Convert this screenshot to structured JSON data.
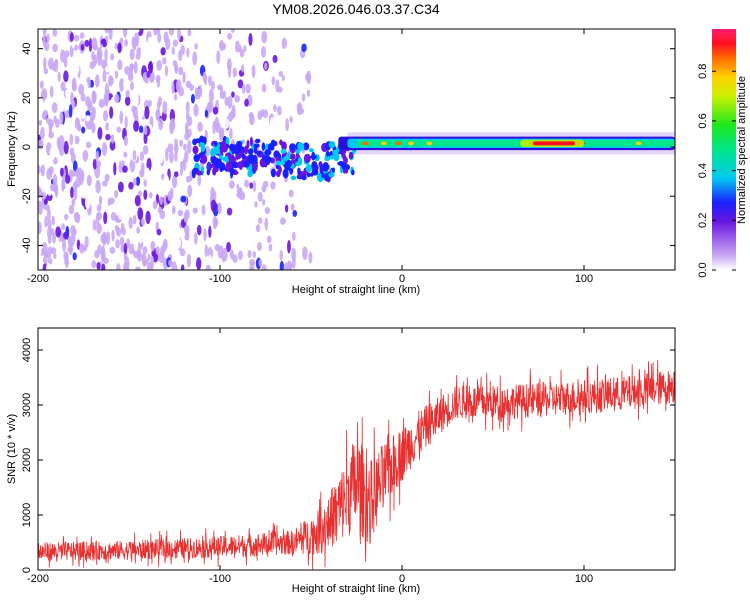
{
  "title": "YM08.2026.046.03.37.C34",
  "chart_data": [
    {
      "type": "heatmap",
      "xlabel": "Height of straight line (km)",
      "ylabel": "Frequency (Hz)",
      "xlim": [
        -200,
        150
      ],
      "ylim": [
        -50,
        48
      ],
      "xticks": [
        -200,
        -100,
        0,
        100
      ],
      "yticks": [
        -40,
        -20,
        0,
        20,
        40
      ],
      "xtick_labels": [
        "-200",
        "-100",
        "0",
        "100"
      ],
      "ytick_labels": [
        "-40",
        "-20",
        "0",
        "20",
        "40"
      ],
      "colorbar": {
        "label": "Normalized spectral amplitude",
        "range": [
          0,
          0.97
        ],
        "ticks": [
          0.0,
          0.2,
          0.4,
          0.6,
          0.8
        ],
        "tick_labels": [
          "0.0",
          "0.2",
          "0.4",
          "0.6",
          "0.8"
        ]
      },
      "description_regions": [
        {
          "name": "broadband noise",
          "x_range": [
            -200,
            -55
          ],
          "f_range": [
            -50,
            48
          ],
          "amplitude": 0.2
        },
        {
          "name": "transition",
          "x_range": [
            -110,
            -30
          ],
          "f_range": [
            -12,
            6
          ],
          "amplitude": 0.35
        },
        {
          "name": "carrier line",
          "x_range": [
            -30,
            150
          ],
          "f_center": 1.5,
          "f_halfwidth": 3,
          "amplitude": 0.6
        },
        {
          "name": "peak",
          "x_range": [
            70,
            100
          ],
          "f_center": 1.5,
          "amplitude": 0.95
        }
      ]
    },
    {
      "type": "line",
      "xlabel": "Height of straight line (km)",
      "ylabel": "SNR (10 * v/v)",
      "xlim": [
        -200,
        150
      ],
      "ylim": [
        0,
        4400
      ],
      "xticks": [
        -200,
        -100,
        0,
        100
      ],
      "yticks": [
        0,
        1000,
        2000,
        3000,
        4000
      ],
      "xtick_labels": [
        "-200",
        "-100",
        "0",
        "100"
      ],
      "ytick_labels": [
        "0",
        "1000",
        "2000",
        "3000",
        "4000"
      ],
      "series": [
        {
          "name": "SNR",
          "color": "#e83030",
          "x": [
            -200,
            -150,
            -100,
            -60,
            -45,
            -35,
            -25,
            -18,
            -10,
            0,
            10,
            20,
            30,
            50,
            80,
            100,
            120,
            150
          ],
          "y_mean": [
            330,
            360,
            420,
            500,
            700,
            1100,
            1600,
            1200,
            1700,
            2100,
            2500,
            2800,
            3050,
            3050,
            3100,
            3150,
            3200,
            3350
          ],
          "y_spread": [
            250,
            250,
            280,
            320,
            600,
            900,
            1300,
            1100,
            900,
            700,
            600,
            500,
            450,
            450,
            450,
            450,
            450,
            450
          ]
        }
      ]
    }
  ]
}
